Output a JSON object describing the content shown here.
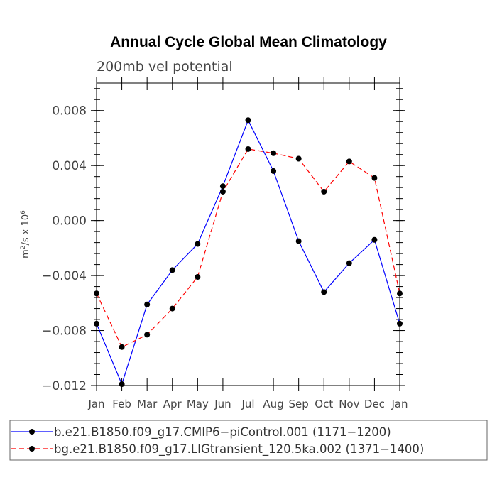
{
  "chart_data": {
    "type": "line",
    "title": "Annual Cycle Global Mean Climatology",
    "subtitle": "200mb vel potential",
    "ylabel": "m² /s x 10⁶",
    "ylabel_parts": {
      "base": "m",
      "sup1": "2",
      "mid": "/s x 10",
      "sup2": "6"
    },
    "xlabel": "",
    "categories": [
      "Jan",
      "Feb",
      "Mar",
      "Apr",
      "May",
      "Jun",
      "Jul",
      "Aug",
      "Sep",
      "Oct",
      "Nov",
      "Dec",
      "Jan"
    ],
    "ylim": [
      -0.012,
      0.01
    ],
    "yticks": [
      -0.012,
      -0.008,
      -0.004,
      0.0,
      0.004,
      0.008
    ],
    "ytick_labels": [
      "−0.012",
      "−0.008",
      "−0.004",
      "0.000",
      "0.004",
      "0.008"
    ],
    "series": [
      {
        "name": "b.e21.B1850.f09_g17.CMIP6-piControl.001 (1171-1200)",
        "color": "#0000ff",
        "dash": "solid",
        "values": [
          -0.0075,
          -0.0119,
          -0.0061,
          -0.0036,
          -0.0017,
          0.0025,
          0.0073,
          0.0036,
          -0.0015,
          -0.0052,
          -0.0031,
          -0.0014,
          -0.0075
        ]
      },
      {
        "name": "bg.e21.B1850.f09_g17.LIGtransient_120.5ka.002 (1371-1400)",
        "color": "#ff0000",
        "dash": "dashed",
        "values": [
          -0.0053,
          -0.0092,
          -0.0083,
          -0.0064,
          -0.0041,
          0.0021,
          0.0052,
          0.0049,
          0.0045,
          0.0021,
          0.0043,
          0.0031,
          -0.0053
        ]
      }
    ],
    "legend": [
      "b.e21.B1850.f09_g17.CMIP6−piControl.001 (1171−1200)",
      "bg.e21.B1850.f09_g17.LIGtransient_120.5ka.002 (1371−1400)"
    ]
  }
}
